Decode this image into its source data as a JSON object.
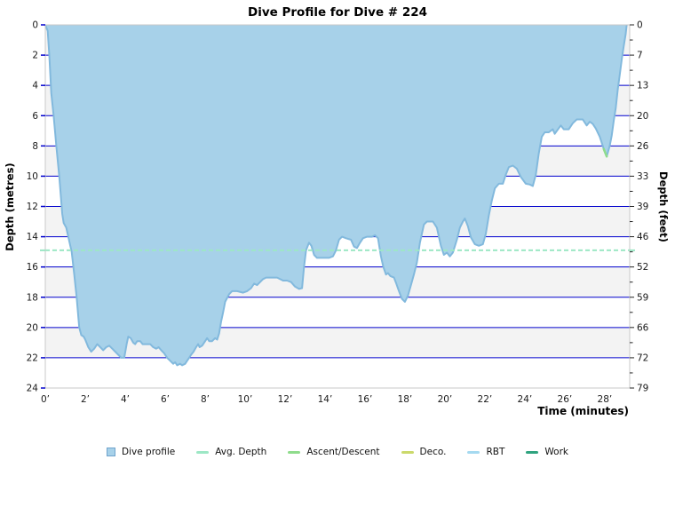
{
  "title": "Dive Profile for Dive # 224",
  "axes": {
    "y_left_label": "Depth (metres)",
    "y_right_label": "Depth (feet)",
    "x_label": "Time (minutes)"
  },
  "colors": {
    "fill": "#A7D1E9",
    "edge": "#82B9DD",
    "grid": "#0000CD",
    "band": "#F3F3F3",
    "band_alt": "#FFFFFF",
    "border": "#C8C8C8",
    "avg_depth": "#9DE7C5",
    "ascent_descent": "#8FDC8C",
    "deco": "#CBD96B",
    "rbt": "#A5D9F0",
    "work": "#2FA37F",
    "tick_text": "#1A1A1A"
  },
  "chart_data": {
    "type": "area",
    "title": "Dive Profile for Dive # 224",
    "xlabel": "Time (minutes)",
    "ylabel_left": "Depth (metres)",
    "ylabel_right": "Depth (feet)",
    "x_range": [
      0,
      29.25
    ],
    "y_range_metres": [
      0,
      24
    ],
    "y_axis_inverted": true,
    "grid": true,
    "avg_depth_m": 14.9,
    "max_depth_m": 22.5,
    "duration_min": 29.1,
    "x_tick_values": [
      0,
      2,
      4,
      6,
      8,
      10,
      12,
      14,
      16,
      18,
      20,
      22,
      24,
      26,
      28
    ],
    "x_tick_labels": [
      "0’",
      "2’",
      "4’",
      "6’",
      "8’",
      "10’",
      "12’",
      "14’",
      "16’",
      "18’",
      "20’",
      "22’",
      "24’",
      "26’",
      "28’"
    ],
    "y_left_tick_values": [
      0,
      2,
      4,
      6,
      8,
      10,
      12,
      14,
      16,
      18,
      20,
      22,
      24
    ],
    "y_right_tick_labels": [
      "0",
      "7",
      "13",
      "20",
      "26",
      "33",
      "39",
      "46",
      "52",
      "59",
      "66",
      "72",
      "79"
    ],
    "series": [
      {
        "name": "Dive profile",
        "x": [
          0,
          0.12,
          0.2,
          0.3,
          0.42,
          0.55,
          0.7,
          0.85,
          0.92,
          1.05,
          1.2,
          1.32,
          1.45,
          1.57,
          1.7,
          1.8,
          1.92,
          2.0,
          2.15,
          2.3,
          2.45,
          2.6,
          2.75,
          2.9,
          3.05,
          3.2,
          3.35,
          3.5,
          3.65,
          3.8,
          3.95,
          4.07,
          4.15,
          4.27,
          4.4,
          4.5,
          4.6,
          4.75,
          4.87,
          5.0,
          5.25,
          5.4,
          5.55,
          5.67,
          5.8,
          5.95,
          6.1,
          6.25,
          6.4,
          6.5,
          6.6,
          6.75,
          6.85,
          7.0,
          7.1,
          7.2,
          7.3,
          7.42,
          7.55,
          7.65,
          7.72,
          7.85,
          8.0,
          8.1,
          8.2,
          8.35,
          8.5,
          8.6,
          8.7,
          8.8,
          8.9,
          9.0,
          9.2,
          9.35,
          9.6,
          9.9,
          10.1,
          10.3,
          10.45,
          10.6,
          10.75,
          10.9,
          11.05,
          11.3,
          11.6,
          11.9,
          12.1,
          12.3,
          12.5,
          12.7,
          12.85,
          12.95,
          13.05,
          13.2,
          13.32,
          13.45,
          13.6,
          13.9,
          14.2,
          14.4,
          14.55,
          14.7,
          14.85,
          15.05,
          15.3,
          15.45,
          15.6,
          15.75,
          15.9,
          16.1,
          16.35,
          16.5,
          16.65,
          16.8,
          16.92,
          17.05,
          17.15,
          17.27,
          17.45,
          17.57,
          17.7,
          17.85,
          18.0,
          18.15,
          18.3,
          18.45,
          18.6,
          18.75,
          18.95,
          19.1,
          19.4,
          19.6,
          19.8,
          19.95,
          20.1,
          20.25,
          20.4,
          20.6,
          20.75,
          20.9,
          21.0,
          21.15,
          21.3,
          21.5,
          21.7,
          21.9,
          22.05,
          22.2,
          22.35,
          22.5,
          22.7,
          22.9,
          23.05,
          23.2,
          23.4,
          23.6,
          23.8,
          24.05,
          24.25,
          24.4,
          24.55,
          24.7,
          24.85,
          25.0,
          25.2,
          25.4,
          25.5,
          25.8,
          25.95,
          26.2,
          26.4,
          26.6,
          26.9,
          27.1,
          27.25,
          27.4,
          27.55,
          27.75,
          27.95,
          28.1,
          28.25,
          28.35,
          28.45,
          28.55,
          28.65,
          28.75,
          28.85,
          28.95,
          29.05,
          29.1
        ],
        "depth_m": [
          0,
          0.4,
          2.0,
          4.5,
          6.0,
          8.0,
          10.0,
          12.5,
          13.1,
          13.4,
          14.3,
          15.0,
          16.5,
          18.0,
          20.0,
          20.5,
          20.6,
          20.8,
          21.3,
          21.6,
          21.4,
          21.1,
          21.3,
          21.5,
          21.3,
          21.2,
          21.4,
          21.6,
          21.8,
          22.0,
          22.0,
          21.1,
          20.6,
          20.7,
          21.0,
          21.1,
          20.9,
          20.9,
          21.1,
          21.1,
          21.1,
          21.3,
          21.4,
          21.3,
          21.5,
          21.7,
          22.0,
          22.2,
          22.4,
          22.3,
          22.5,
          22.4,
          22.5,
          22.4,
          22.2,
          22.0,
          21.8,
          21.6,
          21.3,
          21.1,
          21.3,
          21.2,
          20.9,
          20.7,
          20.9,
          20.9,
          20.7,
          20.8,
          20.4,
          19.6,
          19.0,
          18.3,
          17.8,
          17.6,
          17.6,
          17.7,
          17.6,
          17.4,
          17.1,
          17.2,
          17.0,
          16.8,
          16.7,
          16.7,
          16.7,
          16.9,
          16.9,
          17.0,
          17.3,
          17.45,
          17.4,
          16.0,
          14.9,
          14.4,
          14.6,
          15.2,
          15.4,
          15.4,
          15.4,
          15.3,
          14.9,
          14.2,
          14.0,
          14.1,
          14.2,
          14.65,
          14.75,
          14.4,
          14.1,
          14.0,
          14.0,
          13.9,
          14.1,
          15.3,
          16.0,
          16.5,
          16.4,
          16.6,
          16.7,
          17.1,
          17.6,
          18.1,
          18.3,
          17.9,
          17.2,
          16.5,
          15.7,
          14.4,
          13.2,
          13.0,
          13.0,
          13.4,
          14.6,
          15.2,
          15.05,
          15.3,
          15.05,
          14.2,
          13.4,
          13.0,
          12.8,
          13.3,
          14.05,
          14.5,
          14.6,
          14.5,
          13.8,
          12.6,
          11.6,
          10.8,
          10.5,
          10.5,
          9.9,
          9.4,
          9.3,
          9.5,
          10.05,
          10.5,
          10.55,
          10.65,
          9.9,
          8.5,
          7.4,
          7.1,
          7.1,
          6.9,
          7.2,
          6.65,
          6.9,
          6.9,
          6.5,
          6.25,
          6.25,
          6.65,
          6.4,
          6.55,
          6.85,
          7.4,
          8.2,
          8.7,
          8.0,
          7.3,
          6.35,
          5.5,
          4.3,
          3.3,
          2.3,
          1.4,
          0.6,
          0.0
        ]
      }
    ],
    "ascent_descent_segment": {
      "x": [
        27.95,
        28.1
      ],
      "depth_m": [
        8.2,
        8.7
      ]
    },
    "legend_position": "bottom"
  },
  "legend": {
    "items": [
      {
        "label": "Dive profile",
        "marker": "square",
        "color": "#A7D1E9"
      },
      {
        "label": "Avg. Depth",
        "marker": "dash",
        "color": "#9DE7C5"
      },
      {
        "label": "Ascent/Descent",
        "marker": "dash",
        "color": "#8FDC8C"
      },
      {
        "label": "Deco.",
        "marker": "dash",
        "color": "#CBD96B"
      },
      {
        "label": "RBT",
        "marker": "dash",
        "color": "#A5D9F0"
      },
      {
        "label": "Work",
        "marker": "dash",
        "color": "#2FA37F"
      }
    ]
  }
}
